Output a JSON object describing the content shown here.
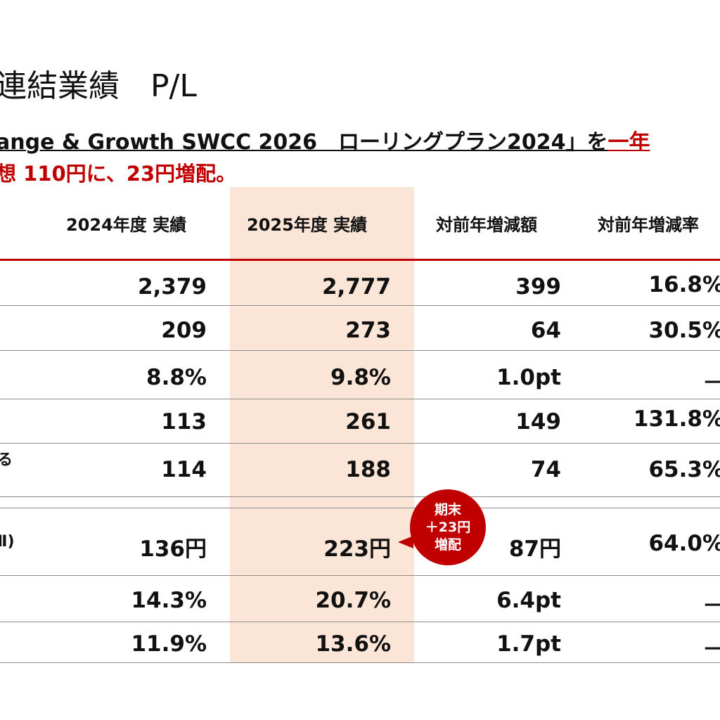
{
  "page": {
    "title": "連結業績　P/L",
    "subtitle_line1_black": "ange & Growth SWCC 2026　ローリングプラン2024」を",
    "subtitle_line1_red": "一年",
    "subtitle_line2": "想 110円に、23円増配。"
  },
  "table": {
    "headers": [
      "2024年度 実績",
      "2025年度 実績",
      "対前年増減額",
      "対前年増減率"
    ],
    "row_labels": [
      "",
      "",
      "",
      "",
      "る",
      "Ⅱ)",
      "",
      ""
    ],
    "rows": [
      [
        "2,379",
        "2,777",
        "399",
        "16.8%"
      ],
      [
        "209",
        "273",
        "64",
        "30.5%"
      ],
      [
        "8.8%",
        "9.8%",
        "1.0pt",
        "－"
      ],
      [
        "113",
        "261",
        "149",
        "131.8%"
      ],
      [
        "114",
        "188",
        "74",
        "65.3%"
      ],
      [
        "136円",
        "223円",
        "87円",
        "64.0%"
      ],
      [
        "14.3%",
        "20.7%",
        "6.4pt",
        "－"
      ],
      [
        "11.9%",
        "13.6%",
        "1.7pt",
        "－"
      ]
    ]
  },
  "callout": {
    "line1": "期末",
    "line2": "＋23円",
    "line3": "増配"
  },
  "colors": {
    "accent_red": "#c00000",
    "highlight_column": "#fbe5d6"
  }
}
